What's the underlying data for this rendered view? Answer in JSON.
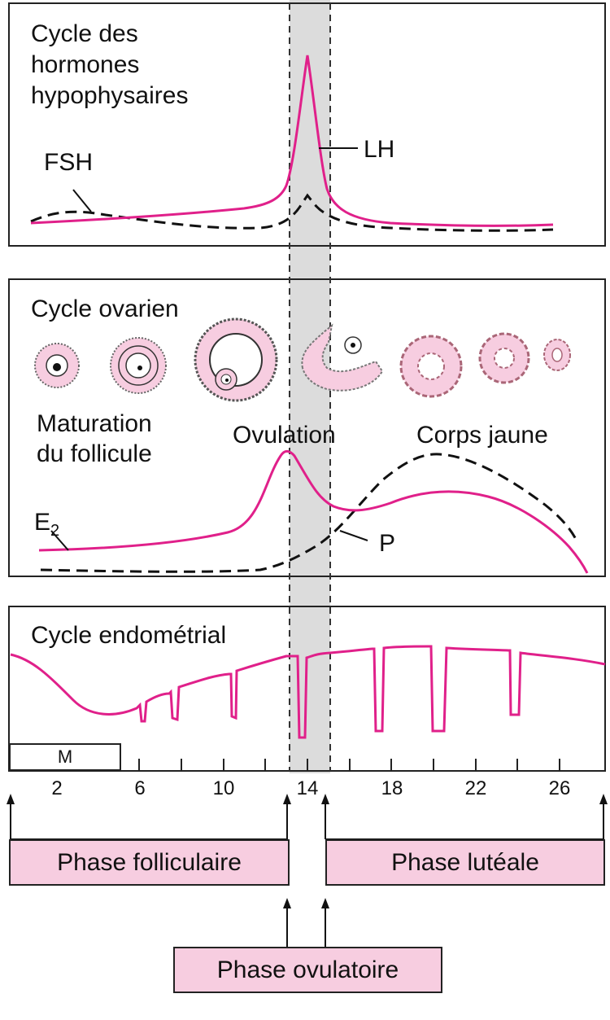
{
  "colors": {
    "pink": "#e0208a",
    "pink_fill": "#f7cde0",
    "gray_band": "#dcdcdc",
    "ink": "#222222"
  },
  "panel_hormones": {
    "title_lines": [
      "Cycle des",
      "hormones",
      "hypophysaires"
    ],
    "fsh_label": "FSH",
    "lh_label": "LH"
  },
  "panel_ovarian": {
    "title": "Cycle ovarien",
    "maturation_lines": [
      "Maturation",
      "du follicule"
    ],
    "ovulation_label": "Ovulation",
    "corps_jaune_label": "Corps jaune",
    "e2_label": "E",
    "e2_sub": "2",
    "p_label": "P"
  },
  "panel_endometrial": {
    "title": "Cycle endométrial",
    "m_label": "M"
  },
  "axis": {
    "ticks": [
      "2",
      "6",
      "10",
      "14",
      "18",
      "22",
      "26"
    ]
  },
  "phases": {
    "follicular": "Phase folliculaire",
    "luteal": "Phase lutéale",
    "ovulatory": "Phase ovulatoire"
  }
}
